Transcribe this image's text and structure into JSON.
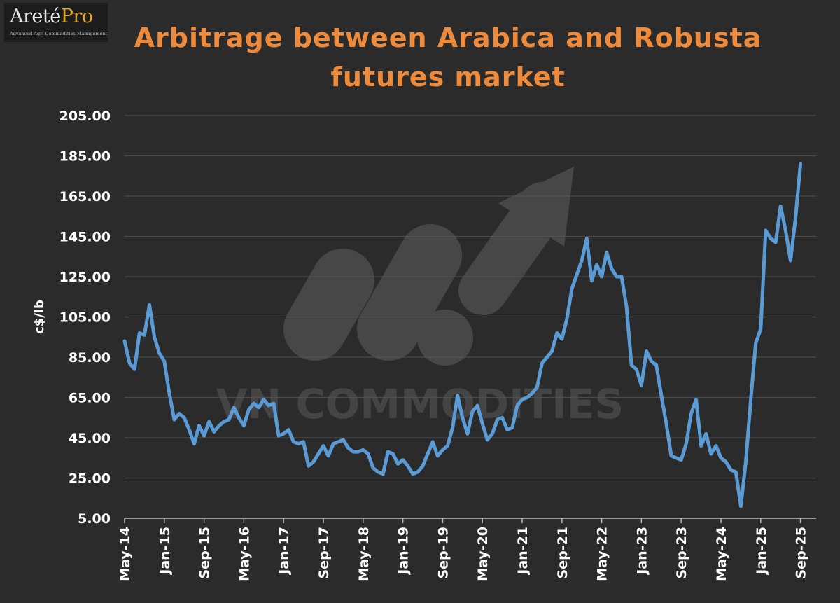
{
  "logo": {
    "brand": "Areté",
    "brand_suffix": "Pro",
    "tagline": "Advanced Agri-Commodities Management",
    "brand_color": "#e0a62b"
  },
  "watermark": {
    "text": "VN COMMODITIES"
  },
  "chart_data": {
    "type": "line",
    "title_lines": [
      "Arbitrage between Arabica and Robusta",
      "futures market"
    ],
    "ylabel": "c$/lb",
    "xlabel": "",
    "ylim": [
      5,
      205
    ],
    "yticks": [
      "205.00",
      "185.00",
      "165.00",
      "145.00",
      "125.00",
      "105.00",
      "85.00",
      "65.00",
      "45.00",
      "25.00",
      "5.00"
    ],
    "xticks": [
      "May-14",
      "Jan-15",
      "Sep-15",
      "May-16",
      "Jan-17",
      "Sep-17",
      "May-18",
      "Jan-19",
      "Sep-19",
      "May-20",
      "Jan-21",
      "Sep-21",
      "May-22",
      "Jan-23",
      "Sep-23",
      "May-24",
      "Jan-25",
      "Sep-25"
    ],
    "x_start": "May-14",
    "months_per_tick": 8,
    "grid": true,
    "legend": "none",
    "line_color": "#5b9bd5",
    "series": [
      {
        "values": [
          [
            0,
            93
          ],
          [
            1,
            82
          ],
          [
            2,
            79
          ],
          [
            3,
            97
          ],
          [
            4,
            96
          ],
          [
            5,
            111
          ],
          [
            6,
            95
          ],
          [
            7,
            87
          ],
          [
            8,
            83
          ],
          [
            9,
            67
          ],
          [
            10,
            54
          ],
          [
            11,
            57
          ],
          [
            12,
            55
          ],
          [
            13,
            49
          ],
          [
            14,
            42
          ],
          [
            15,
            51
          ],
          [
            16,
            46
          ],
          [
            17,
            53
          ],
          [
            18,
            48
          ],
          [
            19,
            51
          ],
          [
            20,
            53
          ],
          [
            21,
            54
          ],
          [
            22,
            60
          ],
          [
            23,
            55
          ],
          [
            24,
            51
          ],
          [
            25,
            59
          ],
          [
            26,
            62
          ],
          [
            27,
            60
          ],
          [
            28,
            64
          ],
          [
            29,
            61
          ],
          [
            30,
            62
          ],
          [
            31,
            46
          ],
          [
            32,
            47
          ],
          [
            33,
            49
          ],
          [
            34,
            43
          ],
          [
            35,
            42
          ],
          [
            36,
            43
          ],
          [
            37,
            31
          ],
          [
            38,
            33
          ],
          [
            39,
            37
          ],
          [
            40,
            41
          ],
          [
            41,
            36
          ],
          [
            42,
            42
          ],
          [
            43,
            43
          ],
          [
            44,
            44
          ],
          [
            45,
            40
          ],
          [
            46,
            38
          ],
          [
            47,
            38
          ],
          [
            48,
            39
          ],
          [
            49,
            37
          ],
          [
            50,
            30
          ],
          [
            51,
            28
          ],
          [
            52,
            27
          ],
          [
            53,
            38
          ],
          [
            54,
            37
          ],
          [
            55,
            32
          ],
          [
            56,
            34
          ],
          [
            57,
            31
          ],
          [
            58,
            27
          ],
          [
            59,
            28
          ],
          [
            60,
            31
          ],
          [
            61,
            37
          ],
          [
            62,
            43
          ],
          [
            63,
            36
          ],
          [
            64,
            39
          ],
          [
            65,
            41
          ],
          [
            66,
            50
          ],
          [
            67,
            66
          ],
          [
            68,
            55
          ],
          [
            69,
            47
          ],
          [
            70,
            58
          ],
          [
            71,
            61
          ],
          [
            72,
            52
          ],
          [
            73,
            44
          ],
          [
            74,
            47
          ],
          [
            75,
            54
          ],
          [
            76,
            55
          ],
          [
            77,
            49
          ],
          [
            78,
            50
          ],
          [
            79,
            61
          ],
          [
            80,
            64
          ],
          [
            81,
            65
          ],
          [
            82,
            67
          ],
          [
            83,
            70
          ],
          [
            84,
            82
          ],
          [
            85,
            85
          ],
          [
            86,
            88
          ],
          [
            87,
            97
          ],
          [
            88,
            94
          ],
          [
            89,
            104
          ],
          [
            90,
            119
          ],
          [
            91,
            126
          ],
          [
            92,
            133
          ],
          [
            93,
            144
          ],
          [
            94,
            123
          ],
          [
            95,
            131
          ],
          [
            96,
            125
          ],
          [
            97,
            137
          ],
          [
            98,
            129
          ],
          [
            99,
            125
          ],
          [
            100,
            125
          ],
          [
            101,
            110
          ],
          [
            102,
            81
          ],
          [
            103,
            79
          ],
          [
            104,
            71
          ],
          [
            105,
            88
          ],
          [
            106,
            83
          ],
          [
            107,
            81
          ],
          [
            108,
            66
          ],
          [
            109,
            52
          ],
          [
            110,
            36
          ],
          [
            111,
            35
          ],
          [
            112,
            34
          ],
          [
            113,
            42
          ],
          [
            114,
            57
          ],
          [
            115,
            64
          ],
          [
            116,
            41
          ],
          [
            117,
            47
          ],
          [
            118,
            37
          ],
          [
            119,
            41
          ],
          [
            120,
            35
          ],
          [
            121,
            33
          ],
          [
            122,
            29
          ],
          [
            123,
            28
          ],
          [
            124,
            11
          ],
          [
            125,
            33
          ],
          [
            126,
            64
          ],
          [
            127,
            92
          ],
          [
            128,
            99
          ],
          [
            129,
            148
          ],
          [
            130,
            144
          ],
          [
            131,
            142
          ],
          [
            132,
            160
          ],
          [
            133,
            148
          ],
          [
            134,
            133
          ],
          [
            135,
            154
          ],
          [
            136,
            181
          ]
        ]
      }
    ]
  }
}
